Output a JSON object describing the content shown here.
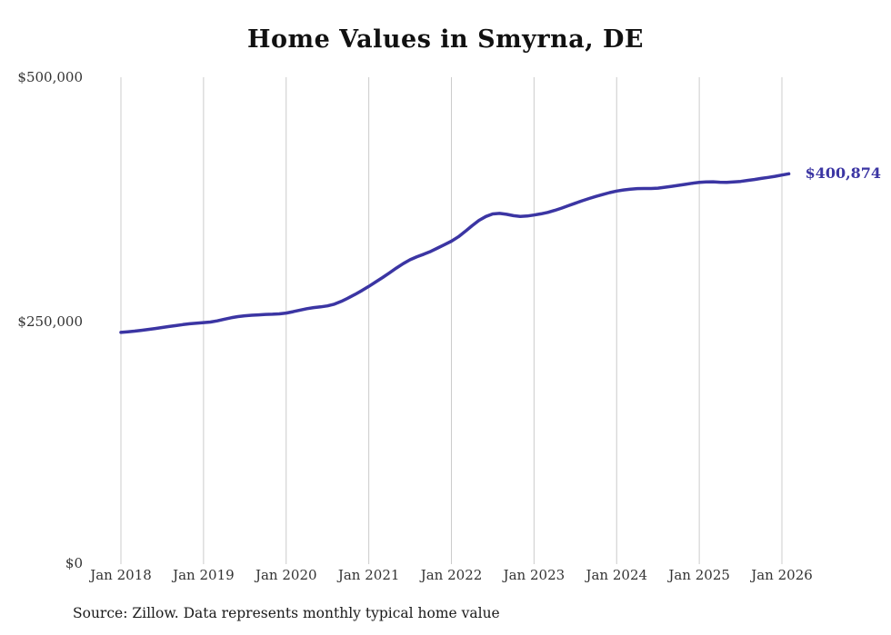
{
  "chart": {
    "title": "Home Values in Smyrna, DE",
    "end_label": "$400,874",
    "source": "Source: Zillow. Data represents monthly typical home value",
    "y_ticks": [
      "$500,000",
      "$250,000",
      "$0"
    ]
  },
  "chart_data": {
    "type": "line",
    "title": "Home Values in Smyrna, DE",
    "x_start": "2018-01",
    "x_end": "2026-02",
    "x_tick_labels": [
      "Jan 2018",
      "Jan 2019",
      "Jan 2020",
      "Jan 2021",
      "Jan 2022",
      "Jan 2023",
      "Jan 2024",
      "Jan 2025",
      "Jan 2026"
    ],
    "y_tick_labels": [
      "$0",
      "$250,000",
      "$500,000"
    ],
    "ylim": [
      0,
      500000
    ],
    "grid": "vertical-only",
    "legend": "none",
    "line_color": "#3b35a3",
    "annotation": "$400,874",
    "final_value": 400874,
    "source": "Source: Zillow. Data represents monthly typical home value",
    "series": [
      {
        "name": "Monthly typical home value",
        "values": [
          238000,
          238600,
          239300,
          240100,
          241000,
          242000,
          243000,
          244000,
          245000,
          246000,
          246800,
          247400,
          248000,
          248600,
          249800,
          251500,
          253000,
          254200,
          255000,
          255600,
          256000,
          256400,
          256600,
          257000,
          257800,
          259200,
          260800,
          262300,
          263400,
          264200,
          265200,
          267000,
          269800,
          273200,
          277000,
          281000,
          285200,
          289700,
          294300,
          299100,
          304000,
          308600,
          312600,
          315700,
          318300,
          321200,
          324600,
          328100,
          331600,
          336100,
          341600,
          347500,
          353000,
          357000,
          359600,
          360200,
          359200,
          357800,
          357100,
          357500,
          358500,
          359700,
          361200,
          363200,
          365600,
          368100,
          370600,
          373100,
          375500,
          377600,
          379600,
          381500,
          383100,
          384200,
          385100,
          385600,
          385700,
          385700,
          386100,
          387000,
          388000,
          389000,
          390000,
          391100,
          392000,
          392500,
          392600,
          392200,
          392000,
          392400,
          393000,
          394000,
          395000,
          396100,
          397100,
          398200,
          399500,
          400874
        ]
      }
    ]
  }
}
